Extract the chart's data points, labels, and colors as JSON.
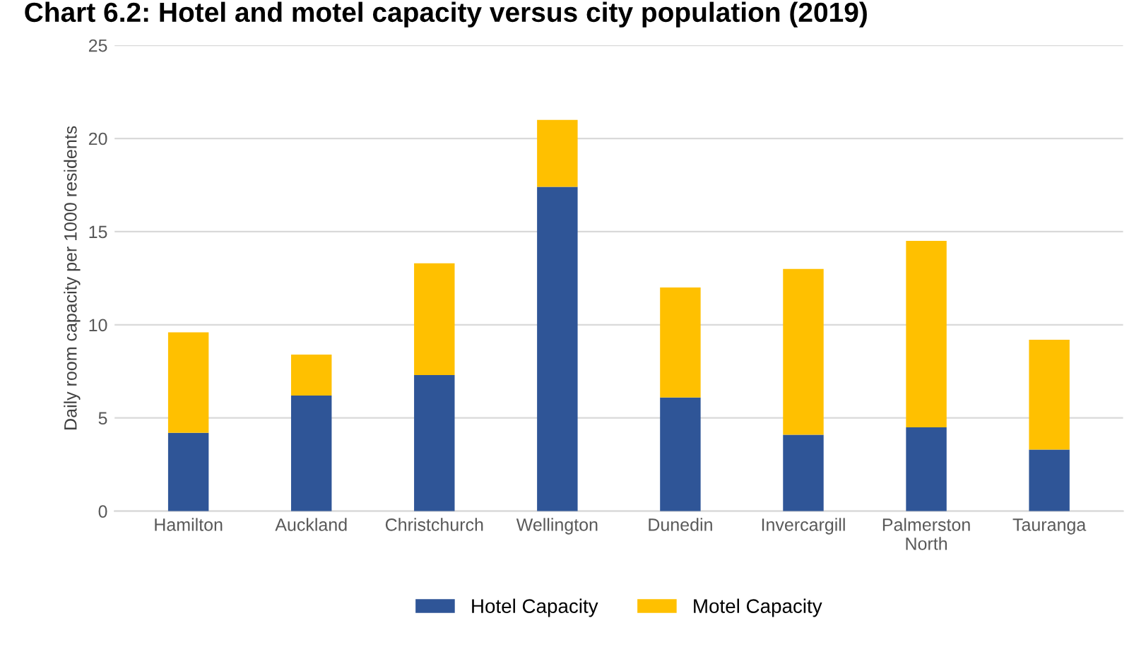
{
  "chart_data": {
    "type": "bar",
    "title": "Chart 6.2: Hotel and motel capacity versus city population (2019)",
    "ylabel": "Daily room capacity per 1000 residents",
    "categories": [
      "Hamilton",
      "Auckland",
      "Christchurch",
      "Wellington",
      "Dunedin",
      "Invercargill",
      "Palmerston\nNorth",
      "Tauranga"
    ],
    "series": [
      {
        "name": "Hotel Capacity",
        "color": "#2f5597",
        "values": [
          4.2,
          6.2,
          7.3,
          17.4,
          6.1,
          4.1,
          4.5,
          3.3
        ]
      },
      {
        "name": "Motel Capacity",
        "color": "#ffc000",
        "values": [
          5.4,
          2.2,
          6.0,
          3.6,
          5.9,
          8.9,
          10.0,
          5.9
        ]
      }
    ],
    "stacked": true,
    "ylim": [
      0,
      25
    ],
    "yticks": [
      0,
      5,
      10,
      15,
      20,
      25
    ],
    "grid": "y",
    "legend": "bottom"
  }
}
